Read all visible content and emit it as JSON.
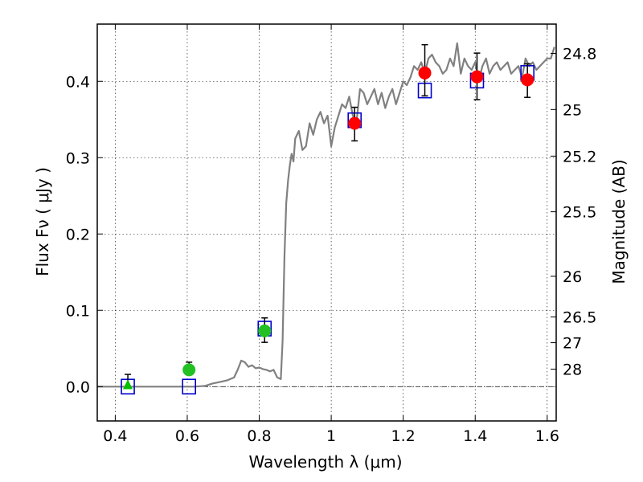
{
  "chart_data": {
    "type": "scatter",
    "title": "",
    "xlabel": "Wavelength  λ (μm)",
    "ylabel": "Flux  Fν ( μJy )",
    "y2label": "Magnitude (AB)",
    "xlim": [
      0.35,
      1.625
    ],
    "ylim": [
      -0.045,
      0.475
    ],
    "grid": true,
    "x_ticks": [
      {
        "v": 0.4,
        "label": "0.4"
      },
      {
        "v": 0.6,
        "label": "0.6"
      },
      {
        "v": 0.8,
        "label": "0.8"
      },
      {
        "v": 1.0,
        "label": "1"
      },
      {
        "v": 1.2,
        "label": "1.2"
      },
      {
        "v": 1.4,
        "label": "1.4"
      },
      {
        "v": 1.6,
        "label": "1.6"
      }
    ],
    "y_ticks": [
      {
        "v": 0.0,
        "label": "0.0"
      },
      {
        "v": 0.1,
        "label": "0.1"
      },
      {
        "v": 0.2,
        "label": "0.2"
      },
      {
        "v": 0.3,
        "label": "0.3"
      },
      {
        "v": 0.4,
        "label": "0.4"
      }
    ],
    "magnitude_ticks": [
      {
        "mag": 24.8,
        "label": "24.8"
      },
      {
        "mag": 25.0,
        "label": "25"
      },
      {
        "mag": 25.2,
        "label": "25.2"
      },
      {
        "mag": 25.5,
        "label": "25.5"
      },
      {
        "mag": 26.0,
        "label": "26"
      },
      {
        "mag": 26.5,
        "label": "26.5"
      },
      {
        "mag": 27.0,
        "label": "27"
      },
      {
        "mag": 28.0,
        "label": "28"
      }
    ],
    "series": [
      {
        "kind": "line",
        "color": "#808080",
        "x": [
          0.35,
          0.55,
          0.62,
          0.65,
          0.67,
          0.69,
          0.71,
          0.73,
          0.74,
          0.75,
          0.76,
          0.77,
          0.78,
          0.79,
          0.8,
          0.81,
          0.82,
          0.83,
          0.84,
          0.85,
          0.86,
          0.865,
          0.87,
          0.875,
          0.88,
          0.885,
          0.89,
          0.895,
          0.9,
          0.91,
          0.92,
          0.93,
          0.94,
          0.95,
          0.96,
          0.97,
          0.98,
          0.99,
          1.0,
          1.01,
          1.02,
          1.03,
          1.04,
          1.05,
          1.06,
          1.07,
          1.08,
          1.09,
          1.1,
          1.11,
          1.12,
          1.13,
          1.14,
          1.15,
          1.16,
          1.17,
          1.18,
          1.19,
          1.2,
          1.21,
          1.22,
          1.23,
          1.24,
          1.25,
          1.26,
          1.27,
          1.28,
          1.29,
          1.3,
          1.31,
          1.32,
          1.33,
          1.34,
          1.35,
          1.36,
          1.37,
          1.38,
          1.39,
          1.4,
          1.41,
          1.42,
          1.43,
          1.44,
          1.45,
          1.46,
          1.47,
          1.48,
          1.49,
          1.5,
          1.51,
          1.52,
          1.53,
          1.54,
          1.55,
          1.56,
          1.57,
          1.58,
          1.59,
          1.6,
          1.61,
          1.62
        ],
        "y": [
          0.0,
          0.0,
          0.0,
          0.001,
          0.004,
          0.006,
          0.008,
          0.012,
          0.022,
          0.034,
          0.032,
          0.026,
          0.028,
          0.024,
          0.025,
          0.023,
          0.022,
          0.02,
          0.022,
          0.012,
          0.01,
          0.06,
          0.17,
          0.24,
          0.27,
          0.29,
          0.305,
          0.295,
          0.325,
          0.335,
          0.31,
          0.315,
          0.345,
          0.33,
          0.35,
          0.36,
          0.345,
          0.355,
          0.315,
          0.34,
          0.355,
          0.37,
          0.365,
          0.38,
          0.355,
          0.345,
          0.39,
          0.385,
          0.37,
          0.38,
          0.39,
          0.37,
          0.385,
          0.365,
          0.38,
          0.39,
          0.37,
          0.385,
          0.4,
          0.395,
          0.405,
          0.42,
          0.415,
          0.425,
          0.41,
          0.43,
          0.435,
          0.425,
          0.42,
          0.41,
          0.415,
          0.43,
          0.42,
          0.45,
          0.41,
          0.43,
          0.42,
          0.415,
          0.425,
          0.4,
          0.42,
          0.43,
          0.41,
          0.42,
          0.425,
          0.415,
          0.42,
          0.425,
          0.41,
          0.415,
          0.42,
          0.405,
          0.43,
          0.42,
          0.425,
          0.415,
          0.42,
          0.425,
          0.43,
          0.43,
          0.445
        ]
      },
      {
        "kind": "model-squares",
        "color": "#0000cc",
        "x": [
          0.435,
          0.605,
          0.815,
          1.065,
          1.26,
          1.405,
          1.545
        ],
        "y": [
          0.0,
          0.0,
          0.076,
          0.349,
          0.388,
          0.401,
          0.411
        ]
      },
      {
        "kind": "triangle",
        "color": "#00c000",
        "x": [
          0.435
        ],
        "y": [
          0.002
        ],
        "yerr_low": [
          0.002
        ],
        "yerr_high": [
          0.014
        ]
      },
      {
        "kind": "points-green",
        "color": "#22c022",
        "x": [
          0.605,
          0.815
        ],
        "y": [
          0.022,
          0.073
        ],
        "yerr_low": [
          0.003,
          0.015
        ],
        "yerr_high": [
          0.01,
          0.017
        ]
      },
      {
        "kind": "points-red",
        "color": "#ff0000",
        "x": [
          1.065,
          1.26,
          1.405,
          1.545
        ],
        "y": [
          0.345,
          0.411,
          0.406,
          0.402
        ],
        "yerr_low": [
          0.023,
          0.03,
          0.03,
          0.023
        ],
        "yerr_high": [
          0.021,
          0.037,
          0.031,
          0.021
        ]
      }
    ]
  }
}
